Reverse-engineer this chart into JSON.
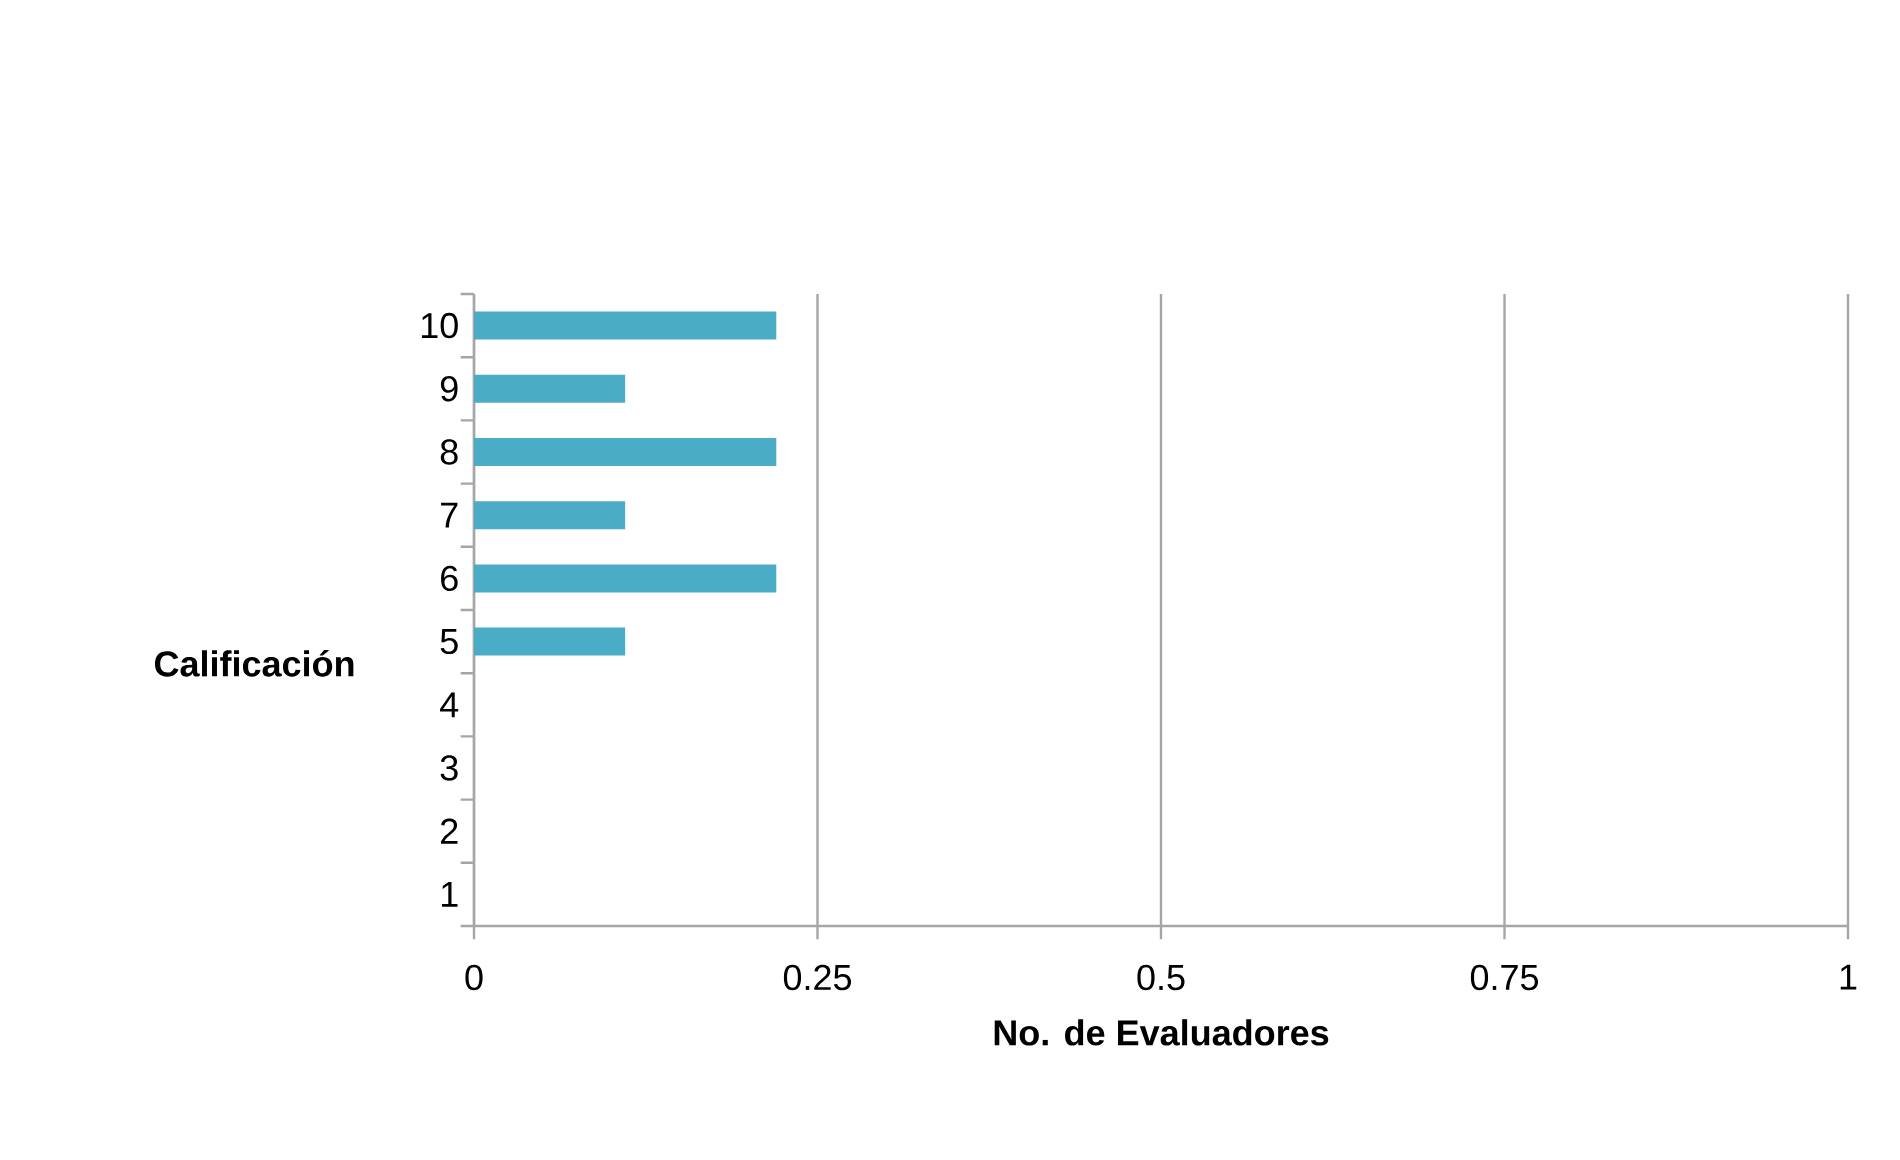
{
  "chart_data": {
    "type": "bar",
    "orientation": "horizontal",
    "xlabel": "No. de Evaluadores",
    "ylabel": "Calificación",
    "categories": [
      "10",
      "9",
      "8",
      "7",
      "6",
      "5",
      "4",
      "3",
      "2",
      "1"
    ],
    "values": [
      0.22,
      0.11,
      0.22,
      0.11,
      0.22,
      0.11,
      0,
      0,
      0,
      0
    ],
    "color": "#4bacc6",
    "xlim": [
      0,
      1
    ],
    "xticks": [
      0,
      0.25,
      0.5,
      0.75,
      1
    ],
    "grid": "x"
  }
}
